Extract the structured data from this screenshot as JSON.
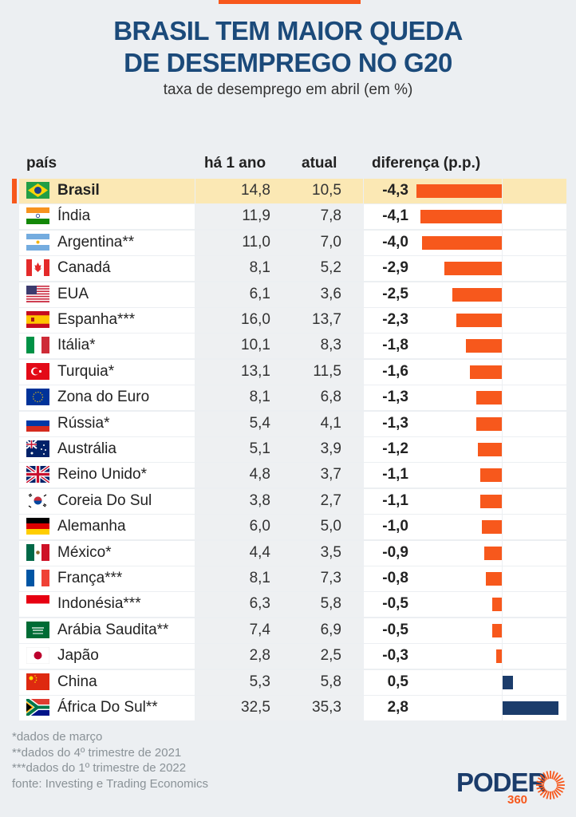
{
  "title_line1": "BRASIL TEM MAIOR QUEDA",
  "title_line2": "DE DESEMPREGO NO G20",
  "subtitle": "taxa de desemprego em abril (em %)",
  "colors": {
    "title": "#1b4a7a",
    "negative": "#f7581c",
    "positive": "#1b3c6b",
    "highlight": "#fbe8b4"
  },
  "chart_data": {
    "type": "table",
    "columns": [
      "país",
      "há 1 ano",
      "atual",
      "diferença (p.p.)"
    ],
    "highlight": "Brasil",
    "rows": [
      {
        "country": "Brasil",
        "flag": "brazil-flag-icon",
        "year_ago": "14,8",
        "current": "10,5",
        "diff": "-4,3",
        "value": -4.3
      },
      {
        "country": "Índia",
        "flag": "india-flag-icon",
        "year_ago": "11,9",
        "current": "7,8",
        "diff": "-4,1",
        "value": -4.1
      },
      {
        "country": "Argentina**",
        "flag": "argentina-flag-icon",
        "year_ago": "11,0",
        "current": "7,0",
        "diff": "-4,0",
        "value": -4.0
      },
      {
        "country": "Canadá",
        "flag": "canada-flag-icon",
        "year_ago": "8,1",
        "current": "5,2",
        "diff": "-2,9",
        "value": -2.9
      },
      {
        "country": "EUA",
        "flag": "usa-flag-icon",
        "year_ago": "6,1",
        "current": "3,6",
        "diff": "-2,5",
        "value": -2.5
      },
      {
        "country": "Espanha***",
        "flag": "spain-flag-icon",
        "year_ago": "16,0",
        "current": "13,7",
        "diff": "-2,3",
        "value": -2.3
      },
      {
        "country": "Itália*",
        "flag": "italy-flag-icon",
        "year_ago": "10,1",
        "current": "8,3",
        "diff": "-1,8",
        "value": -1.8
      },
      {
        "country": "Turquia*",
        "flag": "turkey-flag-icon",
        "year_ago": "13,1",
        "current": "11,5",
        "diff": "-1,6",
        "value": -1.6
      },
      {
        "country": "Zona do Euro",
        "flag": "eu-flag-icon",
        "year_ago": "8,1",
        "current": "6,8",
        "diff": "-1,3",
        "value": -1.3
      },
      {
        "country": "Rússia*",
        "flag": "russia-flag-icon",
        "year_ago": "5,4",
        "current": "4,1",
        "diff": "-1,3",
        "value": -1.3
      },
      {
        "country": "Austrália",
        "flag": "australia-flag-icon",
        "year_ago": "5,1",
        "current": "3,9",
        "diff": "-1,2",
        "value": -1.2
      },
      {
        "country": "Reino Unido*",
        "flag": "uk-flag-icon",
        "year_ago": "4,8",
        "current": "3,7",
        "diff": "-1,1",
        "value": -1.1
      },
      {
        "country": "Coreia Do Sul",
        "flag": "south-korea-flag-icon",
        "year_ago": "3,8",
        "current": "2,7",
        "diff": "-1,1",
        "value": -1.1
      },
      {
        "country": "Alemanha",
        "flag": "germany-flag-icon",
        "year_ago": "6,0",
        "current": "5,0",
        "diff": "-1,0",
        "value": -1.0
      },
      {
        "country": "México*",
        "flag": "mexico-flag-icon",
        "year_ago": "4,4",
        "current": "3,5",
        "diff": "-0,9",
        "value": -0.9
      },
      {
        "country": "França***",
        "flag": "france-flag-icon",
        "year_ago": "8,1",
        "current": "7,3",
        "diff": "-0,8",
        "value": -0.8
      },
      {
        "country": "Indonésia***",
        "flag": "indonesia-flag-icon",
        "year_ago": "6,3",
        "current": "5,8",
        "diff": "-0,5",
        "value": -0.5
      },
      {
        "country": "Arábia Saudita**",
        "flag": "saudi-arabia-flag-icon",
        "year_ago": "7,4",
        "current": "6,9",
        "diff": "-0,5",
        "value": -0.5
      },
      {
        "country": "Japão",
        "flag": "japan-flag-icon",
        "year_ago": "2,8",
        "current": "2,5",
        "diff": "-0,3",
        "value": -0.3
      },
      {
        "country": "China",
        "flag": "china-flag-icon",
        "year_ago": "5,3",
        "current": "5,8",
        "diff": "0,5",
        "value": 0.5
      },
      {
        "country": "África Do Sul**",
        "flag": "south-africa-flag-icon",
        "year_ago": "32,5",
        "current": "35,3",
        "diff": "2,8",
        "value": 2.8
      }
    ]
  },
  "notes": [
    "*dados de março",
    "**dados do 4º trimestre de 2021",
    "***dados do 1º trimestre de 2022",
    "fonte: Investing e Trading Economics"
  ],
  "logo": {
    "word": "PODER",
    "number": "360"
  }
}
